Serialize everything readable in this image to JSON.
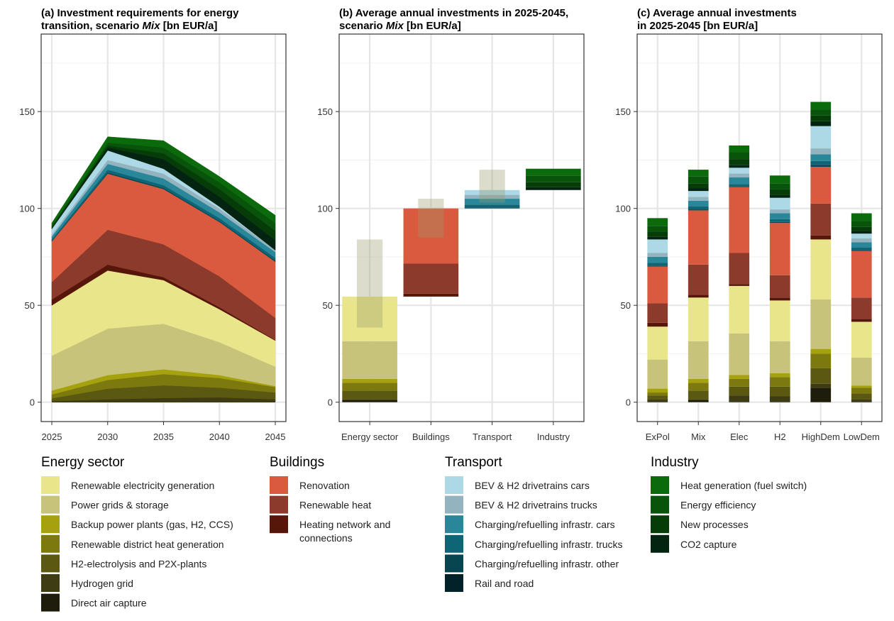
{
  "colors": {
    "renewable_electricity": "#E8E58A",
    "power_grids": "#C7C37A",
    "backup_power": "#A6A10F",
    "district_heat": "#7C7A0E",
    "h2_electrolysis": "#5A5811",
    "hydrogen_grid": "#3E3C12",
    "direct_air_capture": "#1E1D0B",
    "renovation": "#DA5A3F",
    "renewable_heat": "#8B3A2B",
    "heating_network": "#561609",
    "bev_cars": "#ADD8E6",
    "bev_trucks": "#93B4BF",
    "charging_cars": "#2A8799",
    "charging_trucks": "#0E6575",
    "charging_other": "#074550",
    "rail_road": "#02222A",
    "heat_generation": "#0B6A0B",
    "energy_efficiency": "#08540A",
    "new_processes": "#063C08",
    "co2_capture": "#022410"
  },
  "legend": [
    {
      "group": "Energy sector",
      "items": [
        {
          "key": "renewable_electricity",
          "label": "Renewable electricity generation"
        },
        {
          "key": "power_grids",
          "label": "Power grids & storage"
        },
        {
          "key": "backup_power",
          "label": "Backup power plants (gas, H2, CCS)"
        },
        {
          "key": "district_heat",
          "label": "Renewable district heat generation"
        },
        {
          "key": "h2_electrolysis",
          "label": "H2-electrolysis and P2X-plants"
        },
        {
          "key": "hydrogen_grid",
          "label": "Hydrogen grid"
        },
        {
          "key": "direct_air_capture",
          "label": "Direct air capture"
        }
      ]
    },
    {
      "group": "Buildings",
      "items": [
        {
          "key": "renovation",
          "label": "Renovation"
        },
        {
          "key": "renewable_heat",
          "label": "Renewable heat"
        },
        {
          "key": "heating_network",
          "label": "Heating network and",
          "label2": "connections"
        }
      ]
    },
    {
      "group": "Transport",
      "items": [
        {
          "key": "bev_cars",
          "label": "BEV & H2 drivetrains cars"
        },
        {
          "key": "bev_trucks",
          "label": "BEV & H2 drivetrains trucks"
        },
        {
          "key": "charging_cars",
          "label": "Charging/refuelling infrastr. cars"
        },
        {
          "key": "charging_trucks",
          "label": "Charging/refuelling infrastr. trucks"
        },
        {
          "key": "charging_other",
          "label": "Charging/refuelling infrastr. other"
        },
        {
          "key": "rail_road",
          "label": "Rail and road"
        }
      ]
    },
    {
      "group": "Industry",
      "items": [
        {
          "key": "heat_generation",
          "label": "Heat generation (fuel switch)"
        },
        {
          "key": "energy_efficiency",
          "label": "Energy efficiency"
        },
        {
          "key": "new_processes",
          "label": "New processes"
        },
        {
          "key": "co2_capture",
          "label": "CO2 capture"
        }
      ]
    }
  ],
  "chart_data": [
    {
      "type": "area",
      "title_line1": "(a) Investment requirements for energy",
      "title_line2_pre": "transition, scenario ",
      "title_line2_em": "Mix",
      "title_line2_post": " [bn EUR/a]",
      "x": [
        2025,
        2030,
        2035,
        2040,
        2045
      ],
      "x_ticks": [
        2025,
        2030,
        2035,
        2040,
        2045
      ],
      "ylim": [
        -10,
        190
      ],
      "y_ticks": [
        0,
        50,
        100,
        150
      ],
      "series": [
        {
          "key": "direct_air_capture",
          "values": [
            0,
            0,
            0,
            0,
            0
          ]
        },
        {
          "key": "hydrogen_grid",
          "values": [
            0.5,
            1.5,
            2.2,
            2.5,
            1.5
          ]
        },
        {
          "key": "h2_electrolysis",
          "values": [
            1.5,
            5.5,
            6.5,
            5,
            3.5
          ]
        },
        {
          "key": "district_heat",
          "values": [
            2,
            4.5,
            5.8,
            5,
            2.8
          ]
        },
        {
          "key": "backup_power",
          "values": [
            2,
            2.5,
            2.5,
            1.5,
            0.5
          ]
        },
        {
          "key": "power_grids",
          "values": [
            18,
            24,
            23.5,
            17,
            10
          ]
        },
        {
          "key": "renewable_electricity",
          "values": [
            26,
            30,
            22.5,
            17,
            13.5
          ]
        },
        {
          "key": "heating_network",
          "values": [
            3,
            3,
            1.5,
            1,
            0.3
          ]
        },
        {
          "key": "renewable_heat",
          "values": [
            9,
            18,
            17,
            16,
            11.4
          ]
        },
        {
          "key": "renovation",
          "values": [
            21,
            29,
            28.5,
            28,
            29
          ]
        },
        {
          "key": "charging_other",
          "values": [
            0.3,
            0.5,
            0.5,
            0.5,
            0.5
          ]
        },
        {
          "key": "charging_trucks",
          "values": [
            0.7,
            1.5,
            1.5,
            1.5,
            1.5
          ]
        },
        {
          "key": "charging_cars",
          "values": [
            1.5,
            3,
            3.5,
            3,
            3
          ]
        },
        {
          "key": "bev_trucks",
          "values": [
            1,
            2,
            2.5,
            2,
            1
          ]
        },
        {
          "key": "bev_cars",
          "values": [
            3,
            5,
            2.5,
            1,
            0
          ]
        },
        {
          "key": "rail_road",
          "values": [
            0,
            0,
            0,
            0,
            0
          ]
        },
        {
          "key": "co2_capture",
          "values": [
            0.5,
            1.5,
            5,
            5,
            5
          ]
        },
        {
          "key": "new_processes",
          "values": [
            0.5,
            1,
            3,
            4,
            5
          ]
        },
        {
          "key": "energy_efficiency",
          "values": [
            0.5,
            1.5,
            3,
            3.5,
            4
          ]
        },
        {
          "key": "heat_generation",
          "values": [
            1.5,
            3,
            3.5,
            3,
            4
          ]
        }
      ]
    },
    {
      "type": "bar",
      "title_line1": "(b) Average annual investments in 2025-2045,",
      "title_line2_pre": "scenario ",
      "title_line2_em": "Mix",
      "title_line2_post": " [bn EUR/a]",
      "categories": [
        "Energy sector",
        "Buildings",
        "Transport",
        "Industry"
      ],
      "ylim": [
        -10,
        190
      ],
      "y_ticks": [
        0,
        50,
        100,
        150
      ],
      "bars": [
        {
          "category": "Energy sector",
          "base": 0,
          "segments": [
            {
              "key": "direct_air_capture",
              "value": 1
            },
            {
              "key": "hydrogen_grid",
              "value": 0.5
            },
            {
              "key": "h2_electrolysis",
              "value": 4.5
            },
            {
              "key": "district_heat",
              "value": 4
            },
            {
              "key": "backup_power",
              "value": 2
            },
            {
              "key": "power_grids",
              "value": 19.5
            },
            {
              "key": "renewable_electricity",
              "value": 23
            }
          ]
        },
        {
          "category": "Buildings",
          "base": 54.5,
          "segments": [
            {
              "key": "heating_network",
              "value": 1.5
            },
            {
              "key": "renewable_heat",
              "value": 15.5
            },
            {
              "key": "renovation",
              "value": 28.5
            }
          ]
        },
        {
          "category": "Transport",
          "base": 100,
          "segments": [
            {
              "key": "rail_road",
              "value": 0
            },
            {
              "key": "charging_other",
              "value": 0.5
            },
            {
              "key": "charging_trucks",
              "value": 1.5
            },
            {
              "key": "charging_cars",
              "value": 3
            },
            {
              "key": "bev_trucks",
              "value": 2
            },
            {
              "key": "bev_cars",
              "value": 2.5
            }
          ]
        },
        {
          "category": "Industry",
          "base": 109.5,
          "segments": [
            {
              "key": "co2_capture",
              "value": 1.5
            },
            {
              "key": "new_processes",
              "value": 2.5
            },
            {
              "key": "energy_efficiency",
              "value": 3.5
            },
            {
              "key": "heat_generation",
              "value": 3.5
            }
          ]
        }
      ],
      "range_boxes": [
        {
          "category": "Energy sector",
          "low": 38.5,
          "high": 84
        },
        {
          "category": "Buildings",
          "low": 85,
          "high": 105
        },
        {
          "category": "Transport",
          "low": 103,
          "high": 120
        }
      ]
    },
    {
      "type": "bar",
      "title_line1": "(c) Average annual investments",
      "title_line2_pre": "in 2025-2045 [bn EUR/a]",
      "title_line2_em": "",
      "title_line2_post": "",
      "categories": [
        "ExPol",
        "Mix",
        "Elec",
        "H2",
        "HighDem",
        "LowDem"
      ],
      "ylim": [
        -10,
        190
      ],
      "y_ticks": [
        0,
        50,
        100,
        150
      ],
      "order": [
        "direct_air_capture",
        "hydrogen_grid",
        "h2_electrolysis",
        "district_heat",
        "backup_power",
        "power_grids",
        "renewable_electricity",
        "heating_network",
        "renewable_heat",
        "renovation",
        "rail_road",
        "charging_other",
        "charging_trucks",
        "charging_cars",
        "bev_trucks",
        "bev_cars",
        "co2_capture",
        "new_processes",
        "energy_efficiency",
        "heat_generation"
      ],
      "stacks": {
        "ExPol": [
          0.5,
          1,
          2,
          1.5,
          2,
          15,
          17,
          2,
          10,
          19,
          0,
          0.5,
          1.5,
          3,
          2,
          7,
          1.5,
          2.5,
          3,
          4
        ],
        "Mix": [
          1,
          0.5,
          4.5,
          4,
          2,
          19.5,
          22.5,
          1.5,
          15.5,
          28,
          0,
          0.5,
          1.5,
          3,
          2,
          3,
          1.5,
          2.5,
          3.5,
          3.5
        ],
        "Elec": [
          0.5,
          3,
          4.5,
          4,
          2,
          21.5,
          24.5,
          1,
          16,
          34,
          0,
          0.5,
          1,
          3.5,
          2,
          3,
          1.5,
          3,
          3.5,
          3.5
        ],
        "H2": [
          0.5,
          2.5,
          5,
          5,
          2,
          16.5,
          21,
          1.5,
          11.5,
          27,
          0,
          0.5,
          1.5,
          3,
          2,
          6,
          1.5,
          3,
          3,
          4
        ],
        "HighDem": [
          7.5,
          2,
          8,
          7.5,
          2.5,
          25.5,
          31,
          2,
          16.5,
          19,
          0,
          1,
          2,
          3.5,
          3,
          11.5,
          2.5,
          3,
          3,
          4
        ],
        "LowDem": [
          0.5,
          1,
          3,
          3,
          1,
          14.5,
          18.5,
          1.5,
          11,
          24,
          0,
          0.5,
          1.5,
          2.5,
          2,
          2.5,
          1.5,
          2,
          3,
          4
        ]
      }
    }
  ]
}
